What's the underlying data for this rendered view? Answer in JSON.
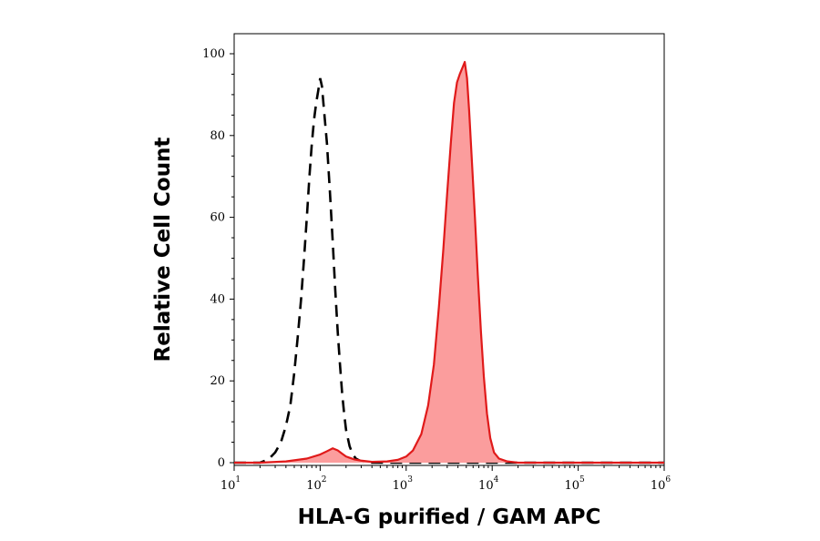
{
  "chart_data": {
    "type": "area",
    "xlabel": "HLA-G purified / GAM APC",
    "ylabel": "Relative Cell Count",
    "x_scale": "log",
    "xlim": [
      10,
      1000000
    ],
    "ylim": [
      0,
      100
    ],
    "x_ticks": [
      {
        "base": "10",
        "exp": "1",
        "value": 10
      },
      {
        "base": "10",
        "exp": "2",
        "value": 100
      },
      {
        "base": "10",
        "exp": "3",
        "value": 1000
      },
      {
        "base": "10",
        "exp": "4",
        "value": 10000
      },
      {
        "base": "10",
        "exp": "5",
        "value": 100000
      },
      {
        "base": "10",
        "exp": "6",
        "value": 1000000
      }
    ],
    "y_ticks": [
      "0",
      "20",
      "40",
      "60",
      "80",
      "100"
    ],
    "grid": false,
    "legend": "none",
    "series": [
      {
        "style": "dashed-outline",
        "color": "#000000",
        "points": [
          [
            10,
            0
          ],
          [
            20,
            0
          ],
          [
            25,
            0.8
          ],
          [
            30,
            2.5
          ],
          [
            35,
            5
          ],
          [
            40,
            9
          ],
          [
            45,
            14
          ],
          [
            50,
            22
          ],
          [
            55,
            31
          ],
          [
            60,
            40
          ],
          [
            65,
            50
          ],
          [
            70,
            60
          ],
          [
            75,
            70
          ],
          [
            80,
            78
          ],
          [
            85,
            84
          ],
          [
            90,
            88
          ],
          [
            95,
            91
          ],
          [
            100,
            94
          ],
          [
            105,
            92
          ],
          [
            110,
            87
          ],
          [
            120,
            78
          ],
          [
            130,
            66
          ],
          [
            140,
            54
          ],
          [
            150,
            42
          ],
          [
            160,
            32
          ],
          [
            170,
            24
          ],
          [
            180,
            17
          ],
          [
            190,
            12
          ],
          [
            200,
            8
          ],
          [
            220,
            4
          ],
          [
            240,
            2
          ],
          [
            260,
            1
          ],
          [
            300,
            0.3
          ],
          [
            400,
            0
          ],
          [
            1000000,
            0
          ]
        ]
      },
      {
        "style": "filled",
        "color": "#e01a1a",
        "fill": "#fb9d9d",
        "points": [
          [
            10,
            0
          ],
          [
            20,
            0
          ],
          [
            40,
            0.3
          ],
          [
            70,
            1
          ],
          [
            100,
            2
          ],
          [
            120,
            2.8
          ],
          [
            140,
            3.5
          ],
          [
            160,
            3
          ],
          [
            180,
            2.2
          ],
          [
            200,
            1.5
          ],
          [
            250,
            0.8
          ],
          [
            300,
            0.5
          ],
          [
            400,
            0.2
          ],
          [
            600,
            0.3
          ],
          [
            800,
            0.7
          ],
          [
            1000,
            1.5
          ],
          [
            1200,
            3
          ],
          [
            1500,
            7
          ],
          [
            1800,
            14
          ],
          [
            2100,
            24
          ],
          [
            2400,
            38
          ],
          [
            2700,
            52
          ],
          [
            3000,
            66
          ],
          [
            3300,
            78
          ],
          [
            3600,
            88
          ],
          [
            3900,
            93
          ],
          [
            4200,
            95
          ],
          [
            4600,
            97
          ],
          [
            4800,
            98
          ],
          [
            5100,
            94
          ],
          [
            5400,
            86
          ],
          [
            5800,
            74
          ],
          [
            6300,
            60
          ],
          [
            6800,
            46
          ],
          [
            7400,
            32
          ],
          [
            8000,
            21
          ],
          [
            8700,
            12
          ],
          [
            9500,
            6
          ],
          [
            10500,
            2.5
          ],
          [
            12000,
            1
          ],
          [
            15000,
            0.3
          ],
          [
            20000,
            0
          ],
          [
            1000000,
            0
          ]
        ]
      }
    ]
  }
}
